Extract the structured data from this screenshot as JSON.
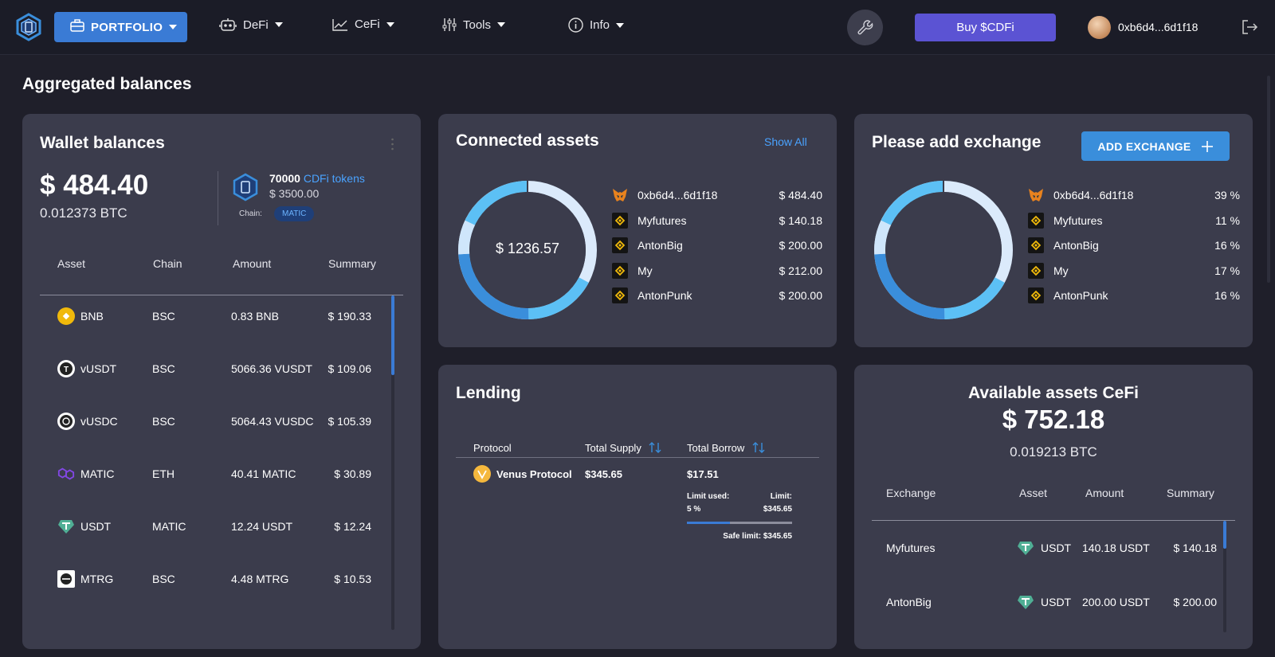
{
  "nav": {
    "portfolio": "PORTFOLIO",
    "defi": "DeFi",
    "cefi": "CeFi",
    "tools": "Tools",
    "info": "Info",
    "buy": "Buy $CDFi",
    "wallet_address": "0xb6d4...6d1f18"
  },
  "page": {
    "title": "Aggregated balances"
  },
  "wallet": {
    "title": "Wallet balances",
    "usd_total": "$ 484.40",
    "btc_total": "0.012373 BTC",
    "token_count": "70000",
    "token_link": "CDFi tokens",
    "token_usd": "$ 3500.00",
    "chain_label": "Chain:",
    "chain_value": "MATIC",
    "columns": [
      "Asset",
      "Chain",
      "Amount",
      "Summary"
    ],
    "rows": [
      {
        "asset": "BNB",
        "chain": "BSC",
        "amount": "0.83 BNB",
        "summary": "$ 190.33",
        "icon": "bnb-icon",
        "color": "#f0b90b"
      },
      {
        "asset": "vUSDT",
        "chain": "BSC",
        "amount": "5066.36 VUSDT",
        "summary": "$ 109.06",
        "icon": "vusdt-icon",
        "color": "#ffffff"
      },
      {
        "asset": "vUSDC",
        "chain": "BSC",
        "amount": "5064.43 VUSDC",
        "summary": "$ 105.39",
        "icon": "vusdc-icon",
        "color": "#ffffff"
      },
      {
        "asset": "MATIC",
        "chain": "ETH",
        "amount": "40.41 MATIC",
        "summary": "$ 30.89",
        "icon": "matic-icon",
        "color": "#8247e5"
      },
      {
        "asset": "USDT",
        "chain": "MATIC",
        "amount": "12.24 USDT",
        "summary": "$ 12.24",
        "icon": "tether-icon",
        "color": "#50af95"
      },
      {
        "asset": "MTRG",
        "chain": "BSC",
        "amount": "4.48 MTRG",
        "summary": "$ 10.53",
        "icon": "mtrg-icon",
        "color": "#ffffff"
      }
    ]
  },
  "connected": {
    "title": "Connected assets",
    "show_all": "Show All",
    "total": "$ 1236.57",
    "items": [
      {
        "name": "0xb6d4...6d1f18",
        "value": "$ 484.40",
        "icon": "metamask-icon"
      },
      {
        "name": "Myfutures",
        "value": "$ 140.18",
        "icon": "binance-icon"
      },
      {
        "name": "AntonBig",
        "value": "$ 200.00",
        "icon": "binance-icon"
      },
      {
        "name": "My",
        "value": "$ 212.00",
        "icon": "binance-icon"
      },
      {
        "name": "AntonPunk",
        "value": "$ 200.00",
        "icon": "binance-icon"
      }
    ]
  },
  "exchange": {
    "title": "Please add exchange",
    "add_button": "ADD EXCHANGE",
    "items": [
      {
        "name": "0xb6d4...6d1f18",
        "value": "39 %",
        "icon": "metamask-icon"
      },
      {
        "name": "Myfutures",
        "value": "11 %",
        "icon": "binance-icon"
      },
      {
        "name": "AntonBig",
        "value": "16 %",
        "icon": "binance-icon"
      },
      {
        "name": "My",
        "value": "17 %",
        "icon": "binance-icon"
      },
      {
        "name": "AntonPunk",
        "value": "16 %",
        "icon": "binance-icon"
      }
    ]
  },
  "lending": {
    "title": "Lending",
    "columns": [
      "Protocol",
      "Total Supply",
      "Total Borrow"
    ],
    "protocol": "Venus Protocol",
    "supply": "$345.65",
    "borrow": "$17.51",
    "limit_used_label": "Limit used:",
    "limit_used_value": "5 %",
    "limit_label": "Limit:",
    "limit_value": "$345.65",
    "safe_limit": "Safe limit: $345.65",
    "bar_fraction": 0.41
  },
  "cefi": {
    "title": "Available assets CeFi",
    "usd_total": "$ 752.18",
    "btc_total": "0.019213 BTC",
    "columns": [
      "Exchange",
      "Asset",
      "Amount",
      "Summary"
    ],
    "rows": [
      {
        "exchange": "Myfutures",
        "asset": "USDT",
        "amount": "140.18 USDT",
        "summary": "$ 140.18"
      },
      {
        "exchange": "AntonBig",
        "asset": "USDT",
        "amount": "200.00 USDT",
        "summary": "$ 200.00"
      }
    ]
  },
  "colors": {
    "accent": "#3a7bd5",
    "card": "#3b3c4c",
    "link": "#4aa3ff",
    "buy": "#5b53d3"
  }
}
